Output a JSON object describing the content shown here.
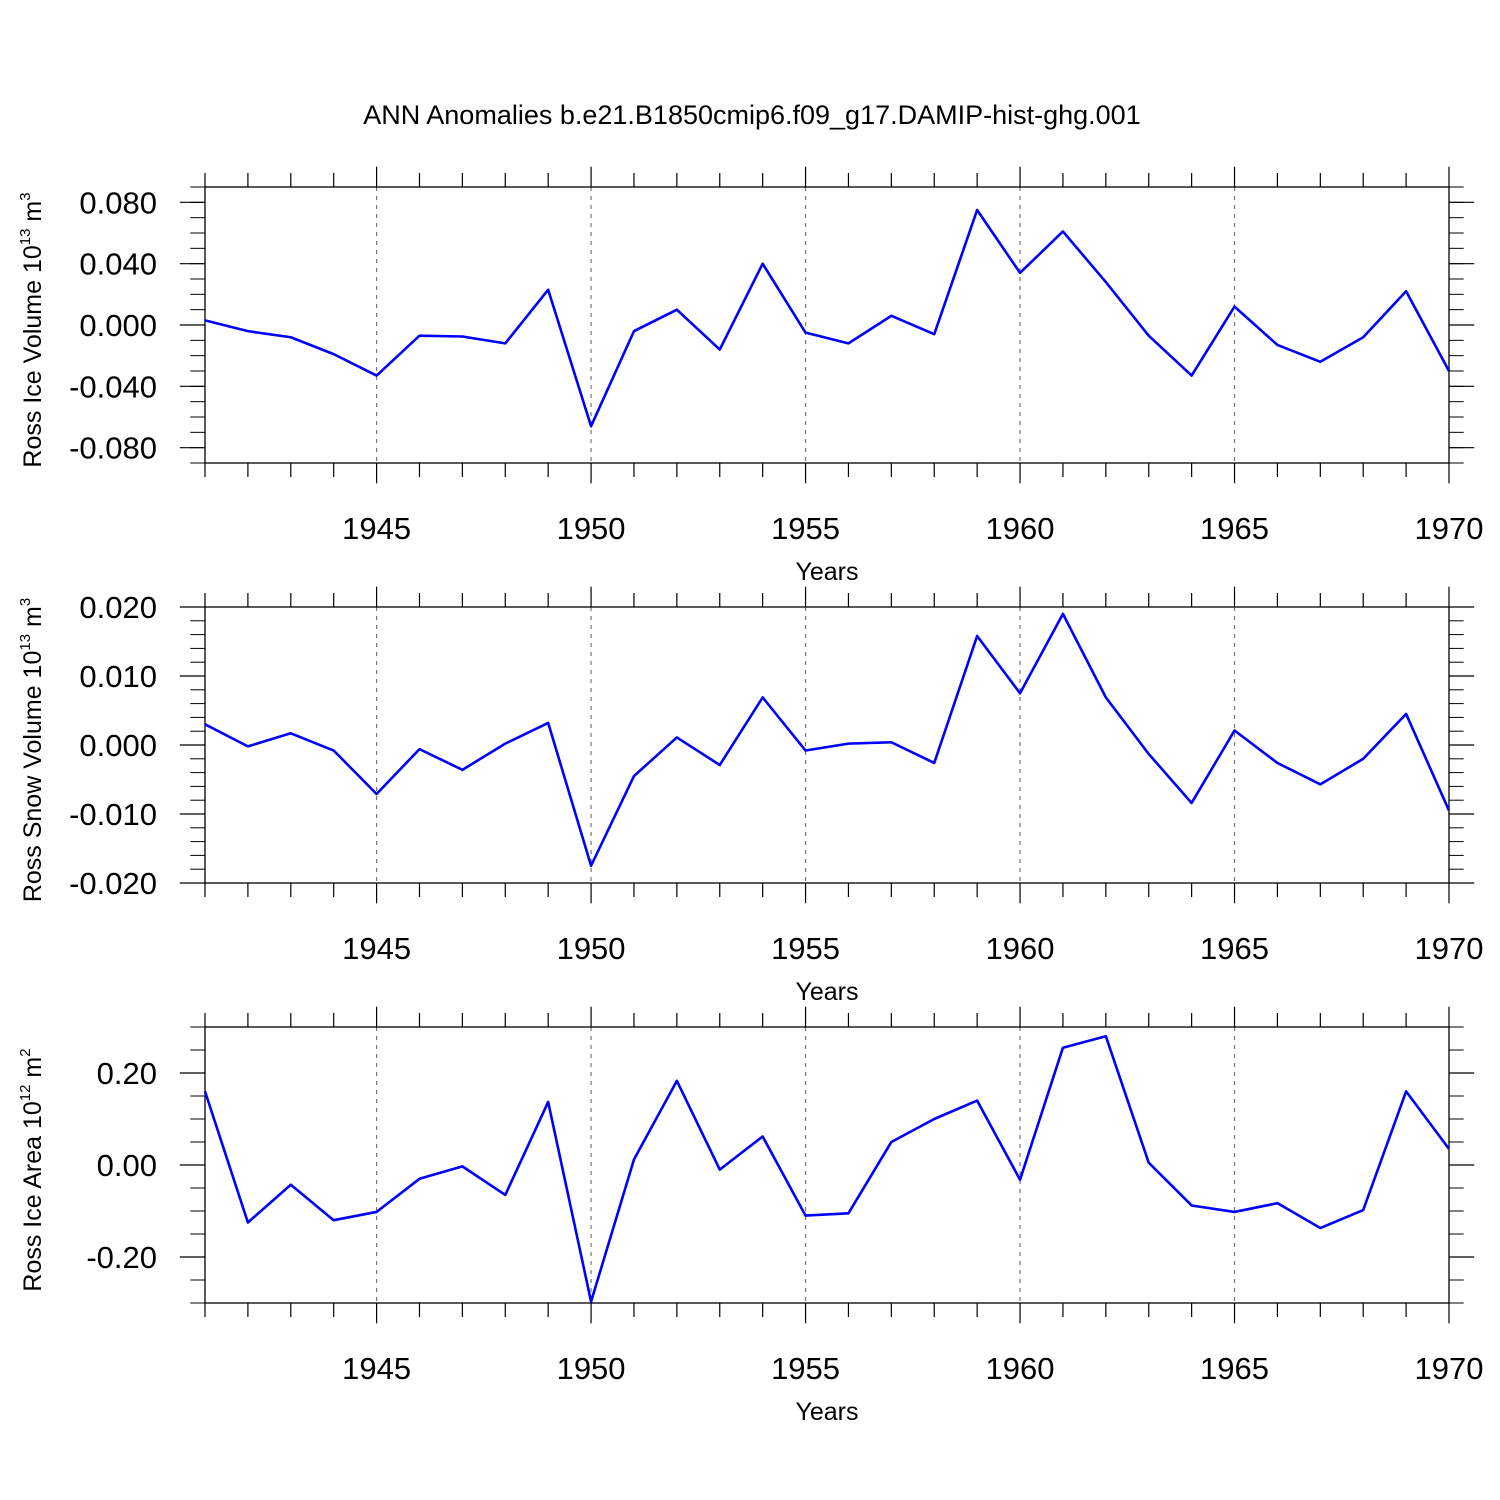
{
  "chart_data": {
    "type": "line",
    "title": "ANN Anomalies b.e21.B1850cmip6.f09_g17.DAMIP-hist-ghg.001",
    "line_color": "#0000ff",
    "x": [
      1941,
      1942,
      1943,
      1944,
      1945,
      1946,
      1947,
      1948,
      1949,
      1950,
      1951,
      1952,
      1953,
      1954,
      1955,
      1956,
      1957,
      1958,
      1959,
      1960,
      1961,
      1962,
      1963,
      1964,
      1965,
      1966,
      1967,
      1968,
      1969,
      1970
    ],
    "xlim": [
      1941,
      1970
    ],
    "xticks": [
      1945,
      1950,
      1955,
      1960,
      1965,
      1970
    ],
    "xlabel": "Years",
    "panels": [
      {
        "id": "ice-volume",
        "ylabel_main": "Ross Ice Volume 10",
        "ylabel_exp": "13",
        "ylabel_unit": " m",
        "ylabel_unit_exp": "3",
        "ylim": [
          -0.09,
          0.09
        ],
        "yticks": [
          0.08,
          0.04,
          0.0,
          -0.04,
          -0.08
        ],
        "ytick_labels": [
          "0.080",
          "0.040",
          "0.000",
          "-0.040",
          "-0.080"
        ],
        "yminor_step": 0.01,
        "values": [
          0.003,
          -0.004,
          -0.008,
          -0.019,
          -0.033,
          -0.007,
          -0.0075,
          -0.012,
          0.023,
          -0.066,
          -0.004,
          0.01,
          -0.016,
          0.04,
          -0.005,
          -0.012,
          0.006,
          -0.006,
          0.075,
          0.034,
          0.061,
          0.028,
          -0.007,
          -0.033,
          0.012,
          -0.013,
          -0.024,
          -0.008,
          0.022,
          -0.03
        ]
      },
      {
        "id": "snow-volume",
        "ylabel_main": "Ross Snow Volume 10",
        "ylabel_exp": "13",
        "ylabel_unit": " m",
        "ylabel_unit_exp": "3",
        "ylim": [
          -0.02,
          0.02
        ],
        "yticks": [
          0.02,
          0.01,
          0.0,
          -0.01,
          -0.02
        ],
        "ytick_labels": [
          "0.020",
          "0.010",
          "0.000",
          "-0.010",
          "-0.020"
        ],
        "yminor_step": 0.002,
        "values": [
          0.003,
          -0.0002,
          0.0017,
          -0.0008,
          -0.0071,
          -0.0006,
          -0.0036,
          0.0002,
          0.0032,
          -0.0175,
          -0.0045,
          0.0011,
          -0.0029,
          0.0069,
          -0.0008,
          0.0002,
          0.0004,
          -0.0026,
          0.0158,
          0.0075,
          0.019,
          0.0069,
          -0.0013,
          -0.0084,
          0.0021,
          -0.0026,
          -0.0057,
          -0.002,
          0.0045,
          -0.0095
        ]
      },
      {
        "id": "ice-area",
        "ylabel_main": "Ross Ice Area 10",
        "ylabel_exp": "12",
        "ylabel_unit": " m",
        "ylabel_unit_exp": "2",
        "ylim": [
          -0.3,
          0.3
        ],
        "yticks": [
          0.2,
          0.0,
          -0.2
        ],
        "ytick_labels": [
          "0.20",
          "0.00",
          "-0.20"
        ],
        "yminor_step": 0.05,
        "values": [
          0.16,
          -0.125,
          -0.043,
          -0.12,
          -0.102,
          -0.03,
          -0.003,
          -0.065,
          0.137,
          -0.297,
          0.012,
          0.183,
          -0.01,
          0.062,
          -0.11,
          -0.105,
          0.05,
          0.1,
          0.14,
          -0.032,
          0.255,
          0.28,
          0.005,
          -0.088,
          -0.102,
          -0.083,
          -0.137,
          -0.098,
          0.16,
          0.035
        ]
      }
    ]
  }
}
